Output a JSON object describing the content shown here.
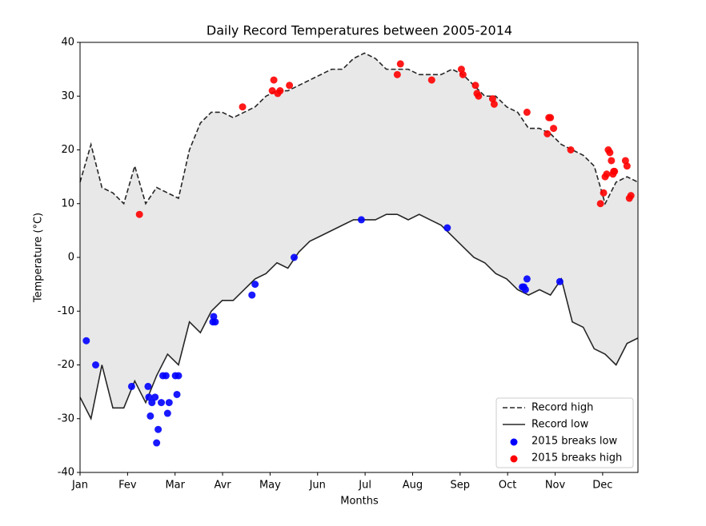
{
  "chart_data": {
    "type": "line",
    "title": "Daily Record Temperatures between 2005-2014",
    "x_label": "Months",
    "y_label": "Temperature (°C)",
    "xlim": [
      0,
      357
    ],
    "ylim": [
      -40,
      40
    ],
    "xticks": [
      {
        "value": 0,
        "label": "Jan"
      },
      {
        "value": 30.4,
        "label": "Fev"
      },
      {
        "value": 60.8,
        "label": "Mar"
      },
      {
        "value": 91.2,
        "label": "Avr"
      },
      {
        "value": 121.6,
        "label": "May"
      },
      {
        "value": 152,
        "label": "Jun"
      },
      {
        "value": 182.4,
        "label": "Jul"
      },
      {
        "value": 212.8,
        "label": "Aug"
      },
      {
        "value": 243.2,
        "label": "Sep"
      },
      {
        "value": 273.6,
        "label": "Oct"
      },
      {
        "value": 304,
        "label": "Nov"
      },
      {
        "value": 334.4,
        "label": "Dec"
      }
    ],
    "yticks": [
      -40,
      -30,
      -20,
      -10,
      0,
      10,
      20,
      30,
      40
    ],
    "fill_between": true,
    "fill_color": "#e8e8e8",
    "legend": "lower right",
    "series": [
      {
        "name": "Record high",
        "kind": "line",
        "dashed": true,
        "color": "#262626",
        "x": [
          0,
          7,
          14,
          21,
          28,
          35,
          42,
          49,
          56,
          63,
          70,
          77,
          84,
          91,
          98,
          105,
          112,
          119,
          126,
          133,
          140,
          147,
          154,
          161,
          168,
          175,
          182,
          189,
          196,
          203,
          210,
          217,
          224,
          231,
          238,
          245,
          252,
          259,
          266,
          273,
          280,
          287,
          294,
          301,
          308,
          315,
          322,
          329,
          336,
          343,
          350,
          357
        ],
        "values": [
          14,
          21,
          13,
          12,
          10,
          17,
          10,
          13,
          12,
          11,
          20,
          25,
          27,
          27,
          26,
          27,
          28,
          30,
          31,
          31,
          32,
          33,
          34,
          35,
          35,
          37,
          38,
          37,
          35,
          35,
          35,
          34,
          34,
          34,
          35,
          34,
          32,
          30,
          30,
          28,
          27,
          24,
          24,
          23,
          21,
          20,
          19,
          17,
          10,
          14,
          15,
          14
        ]
      },
      {
        "name": "Record low",
        "kind": "line",
        "dashed": false,
        "color": "#262626",
        "x": [
          0,
          7,
          14,
          21,
          28,
          35,
          42,
          49,
          56,
          63,
          70,
          77,
          84,
          91,
          98,
          105,
          112,
          119,
          126,
          133,
          140,
          147,
          154,
          161,
          168,
          175,
          182,
          189,
          196,
          203,
          210,
          217,
          224,
          231,
          238,
          245,
          252,
          259,
          266,
          273,
          280,
          287,
          294,
          301,
          308,
          315,
          322,
          329,
          336,
          343,
          350,
          357
        ],
        "values": [
          -26,
          -30,
          -20,
          -28,
          -28,
          -23,
          -27,
          -22,
          -18,
          -20,
          -12,
          -14,
          -10,
          -8,
          -8,
          -6,
          -4,
          -3,
          -1,
          -2,
          1,
          3,
          4,
          5,
          6,
          7,
          7,
          7,
          8,
          8,
          7,
          8,
          7,
          6,
          4,
          2,
          0,
          -1,
          -3,
          -4,
          -6,
          -7,
          -6,
          -7,
          -4,
          -12,
          -13,
          -17,
          -18,
          -20,
          -16,
          -15
        ]
      },
      {
        "name": "2015 breaks low",
        "kind": "scatter",
        "color": "#0000ff",
        "x": [
          4,
          10,
          33,
          43.5,
          44,
          45,
          46,
          48,
          49,
          50,
          52,
          53,
          55,
          56,
          57,
          61,
          62,
          63,
          85,
          85.5,
          86.5,
          110,
          112,
          137,
          180,
          235,
          283,
          284,
          285,
          286,
          307
        ],
        "values": [
          -15.5,
          -20,
          -24,
          -24,
          -26,
          -29.5,
          -27,
          -26,
          -34.5,
          -32,
          -27,
          -22,
          -22,
          -29,
          -27,
          -22,
          -25.5,
          -22,
          -12,
          -11,
          -12,
          -7,
          -5,
          0,
          7,
          5.5,
          -5.5,
          -5.5,
          -6,
          -4,
          -4.5
        ]
      },
      {
        "name": "2015 breaks high",
        "kind": "scatter",
        "color": "#ff0000",
        "x": [
          38,
          104,
          123,
          124,
          126.5,
          128,
          134,
          203,
          205,
          225,
          244,
          245,
          253,
          254,
          255,
          264,
          265,
          286,
          299,
          300,
          301,
          303,
          314,
          333,
          335,
          336,
          337,
          338,
          339,
          340,
          341,
          341.5,
          342,
          349,
          350,
          351.5,
          352.5
        ],
        "values": [
          8,
          28,
          31,
          33,
          30.5,
          31,
          32,
          34,
          36,
          33,
          35,
          34,
          32,
          30.5,
          30,
          29.5,
          28.5,
          27,
          23,
          26,
          26,
          24,
          20,
          10,
          12,
          15,
          15.5,
          20,
          19.5,
          18,
          15.5,
          16,
          16,
          18,
          17,
          11,
          11.5
        ]
      }
    ]
  }
}
